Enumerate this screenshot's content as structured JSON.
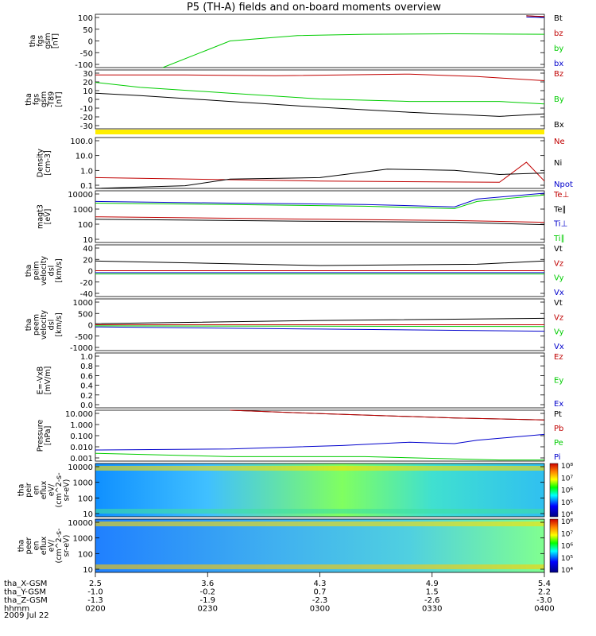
{
  "title": "P5 (TH-A) fields and on-board moments overview",
  "colors": {
    "black": "#000000",
    "red": "#c00000",
    "green": "#00cc00",
    "blue": "#0000cc",
    "yellow": "#ffee00"
  },
  "chart_data": [
    {
      "type": "line",
      "ylabel": [
        "tha",
        "fgs",
        "gsm",
        "[nT]"
      ],
      "ylim": [
        -100,
        100
      ],
      "yticks": [
        "100",
        "50",
        "0",
        "-50",
        "-100"
      ],
      "legend": [
        "Bt",
        "bz",
        "by",
        "bx"
      ],
      "series": [
        {
          "name": "Bt",
          "values": [
            [
              0.96,
              95
            ],
            [
              1,
              90
            ]
          ]
        },
        {
          "name": "bz",
          "values": [
            [
              0.96,
              94
            ],
            [
              1,
              92
            ]
          ]
        },
        {
          "name": "by",
          "values": [
            [
              0.15,
              -100
            ],
            [
              0.3,
              0
            ],
            [
              0.45,
              20
            ],
            [
              0.6,
              25
            ],
            [
              0.8,
              27
            ],
            [
              1,
              25
            ]
          ]
        },
        {
          "name": "bx",
          "values": [
            [
              0.96,
              90
            ],
            [
              1,
              88
            ]
          ]
        }
      ]
    },
    {
      "type": "line",
      "ylabel": [
        "tha",
        "fgs",
        "gsm",
        "-T89",
        "[nT]"
      ],
      "ylim": [
        -38,
        33
      ],
      "yticks": [
        "30",
        "20",
        "10",
        "0",
        "-10",
        "-20",
        "-30"
      ],
      "legend": [
        "Bz",
        "By",
        "Bx"
      ],
      "series": [
        {
          "name": "Bz",
          "values": [
            [
              0,
              27
            ],
            [
              0.2,
              27
            ],
            [
              0.4,
              26
            ],
            [
              0.7,
              28
            ],
            [
              0.85,
              25
            ],
            [
              1,
              20
            ]
          ]
        },
        {
          "name": "By",
          "values": [
            [
              0,
              18
            ],
            [
              0.1,
              12
            ],
            [
              0.3,
              5
            ],
            [
              0.5,
              -2
            ],
            [
              0.7,
              -5
            ],
            [
              0.9,
              -5
            ],
            [
              1,
              -8
            ]
          ]
        },
        {
          "name": "Bx",
          "values": [
            [
              0,
              5
            ],
            [
              0.1,
              2
            ],
            [
              0.3,
              -5
            ],
            [
              0.5,
              -12
            ],
            [
              0.7,
              -18
            ],
            [
              0.9,
              -23
            ],
            [
              1,
              -20
            ]
          ]
        }
      ]
    },
    {
      "type": "line",
      "ylabel": [
        "Density",
        "[cm-3]"
      ],
      "ylim": [
        0.1,
        200
      ],
      "yscale": "log",
      "yticks": [
        "100.0",
        "10.0",
        "1.0",
        "0.1"
      ],
      "legend": [
        "Ne",
        "Ni",
        "Npot"
      ],
      "series": [
        {
          "name": "Ne",
          "values": [
            [
              0,
              0.5
            ],
            [
              0.5,
              0.3
            ],
            [
              0.9,
              0.25
            ],
            [
              0.96,
              5
            ],
            [
              1,
              0.3
            ]
          ]
        },
        {
          "name": "Ni",
          "values": [
            [
              0,
              0.1
            ],
            [
              0.2,
              0.15
            ],
            [
              0.3,
              0.4
            ],
            [
              0.5,
              0.5
            ],
            [
              0.65,
              1.8
            ],
            [
              0.8,
              1.5
            ],
            [
              0.9,
              0.8
            ],
            [
              1,
              1
            ]
          ]
        }
      ]
    },
    {
      "type": "line",
      "ylabel": [
        "magt3",
        "[eV]"
      ],
      "ylim": [
        2,
        12000
      ],
      "yscale": "log",
      "yticks": [
        "10000",
        "1000",
        "100",
        "10"
      ],
      "legend": [
        "Te⊥",
        "Te∥",
        "Ti⊥",
        "Ti∥"
      ],
      "series": [
        {
          "name": "Te⊥",
          "values": [
            [
              0,
              150
            ],
            [
              0.5,
              100
            ],
            [
              0.8,
              80
            ],
            [
              1,
              60
            ]
          ]
        },
        {
          "name": "Te∥",
          "values": [
            [
              0,
              100
            ],
            [
              0.5,
              70
            ],
            [
              0.8,
              60
            ],
            [
              1,
              40
            ]
          ]
        },
        {
          "name": "Ti⊥",
          "values": [
            [
              0,
              2000
            ],
            [
              0.3,
              1500
            ],
            [
              0.6,
              1200
            ],
            [
              0.8,
              800
            ],
            [
              0.85,
              3000
            ],
            [
              1,
              8000
            ]
          ]
        },
        {
          "name": "Ti∥",
          "values": [
            [
              0,
              1500
            ],
            [
              0.3,
              1200
            ],
            [
              0.6,
              900
            ],
            [
              0.8,
              600
            ],
            [
              0.85,
              2000
            ],
            [
              1,
              6000
            ]
          ]
        }
      ]
    },
    {
      "type": "line",
      "ylabel": [
        "tha",
        "peim",
        "velocity",
        "dsl",
        "[km/s]"
      ],
      "ylim": [
        -40,
        40
      ],
      "yticks": [
        "40",
        "20",
        "0",
        "-20",
        "-40"
      ],
      "legend": [
        "Vt",
        "Vz",
        "Vy",
        "Vx"
      ],
      "series": [
        {
          "name": "Vt",
          "values": [
            [
              0,
              15
            ],
            [
              0.5,
              8
            ],
            [
              0.85,
              10
            ],
            [
              1,
              15
            ]
          ]
        },
        {
          "name": "Vz",
          "values": [
            [
              0,
              0
            ],
            [
              1,
              0
            ]
          ]
        },
        {
          "name": "Vy",
          "values": [
            [
              0,
              -5
            ],
            [
              1,
              -5
            ]
          ]
        },
        {
          "name": "Vx",
          "values": [
            [
              0,
              -3
            ],
            [
              1,
              -3
            ]
          ]
        }
      ]
    },
    {
      "type": "line",
      "ylabel": [
        "tha",
        "peem",
        "velocity",
        "dsl",
        "[km/s]"
      ],
      "ylim": [
        -1200,
        1200
      ],
      "yticks": [
        "1000",
        "500",
        "0",
        "-500",
        "-1000"
      ],
      "legend": [
        "Vt",
        "Vz",
        "Vy",
        "Vx"
      ],
      "series": [
        {
          "name": "Vt",
          "values": [
            [
              0,
              50
            ],
            [
              0.5,
              200
            ],
            [
              1,
              300
            ]
          ]
        },
        {
          "name": "Vz",
          "values": [
            [
              0,
              0
            ],
            [
              1,
              0
            ]
          ]
        },
        {
          "name": "Vy",
          "values": [
            [
              0,
              -50
            ],
            [
              1,
              -80
            ]
          ]
        },
        {
          "name": "Vx",
          "values": [
            [
              0,
              -100
            ],
            [
              0.5,
              -200
            ],
            [
              1,
              -300
            ]
          ]
        }
      ]
    },
    {
      "type": "line",
      "ylabel": [
        "E=-VxB",
        "[mV/m]"
      ],
      "ylim": [
        0,
        1
      ],
      "yticks": [
        "1.0",
        "0.8",
        "0.6",
        "0.4",
        "0.2",
        "0.0"
      ],
      "legend": [
        "Ez",
        "Ey",
        "Ex"
      ],
      "series": []
    },
    {
      "type": "line",
      "ylabel": [
        "Pressure",
        "[nPa]"
      ],
      "ylim": [
        0.0008,
        30
      ],
      "yscale": "log",
      "yticks": [
        "10.000",
        "1.000",
        "0.100",
        "0.010",
        "0.001"
      ],
      "legend": [
        "Pt",
        "Pb",
        "Pe",
        "Pi"
      ],
      "series": [
        {
          "name": "Pt",
          "values": [
            [
              0.3,
              30
            ],
            [
              0.5,
              15
            ],
            [
              0.8,
              6
            ],
            [
              1,
              4
            ]
          ]
        },
        {
          "name": "Pb",
          "values": [
            [
              0.3,
              30
            ],
            [
              0.5,
              15
            ],
            [
              0.8,
              6
            ],
            [
              1,
              4
            ]
          ]
        },
        {
          "name": "Pe",
          "values": [
            [
              0,
              0.004
            ],
            [
              0.3,
              0.002
            ],
            [
              0.6,
              0.002
            ],
            [
              0.9,
              0.001
            ],
            [
              1,
              0.001
            ]
          ]
        },
        {
          "name": "Pi",
          "values": [
            [
              0,
              0.008
            ],
            [
              0.3,
              0.01
            ],
            [
              0.55,
              0.02
            ],
            [
              0.7,
              0.04
            ],
            [
              0.8,
              0.03
            ],
            [
              0.85,
              0.06
            ],
            [
              1,
              0.2
            ]
          ]
        }
      ]
    },
    {
      "type": "heatmap",
      "ylabel": [
        "tha",
        "peir",
        "en",
        "eflux",
        "eV/",
        "(cm^2-s-",
        "sr-eV)"
      ],
      "ylim": [
        7,
        20000
      ],
      "yscale": "log",
      "yticks": [
        "10000",
        "1000",
        "100",
        "10"
      ],
      "colorbar": [
        "10⁸",
        "10⁷",
        "10⁶",
        "10⁵",
        "10⁴"
      ]
    },
    {
      "type": "heatmap",
      "ylabel": [
        "tha",
        "peer",
        "en",
        "eflux",
        "eV/",
        "(cm^2-s-",
        "sr-eV)"
      ],
      "ylim": [
        7,
        20000
      ],
      "yscale": "log",
      "yticks": [
        "10000",
        "1000",
        "100",
        "10"
      ],
      "colorbar": [
        "10⁸",
        "10⁷",
        "10⁶",
        "10⁵",
        "10⁴"
      ]
    }
  ],
  "xaxis": {
    "rows": [
      {
        "label": "tha_X-GSM",
        "values": [
          "2.5",
          "3.6",
          "4.3",
          "4.9",
          "5.4"
        ]
      },
      {
        "label": "tha_Y-GSM",
        "values": [
          "-1.0",
          "-0.2",
          "0.7",
          "1.5",
          "2.2"
        ]
      },
      {
        "label": "tha_Z-GSM",
        "values": [
          "-1.3",
          "-1.9",
          "-2.3",
          "-2.6",
          "-3.0"
        ]
      },
      {
        "label": "hhmm",
        "values": [
          "0200",
          "0230",
          "0300",
          "0330",
          "0400"
        ]
      }
    ],
    "date": "2009 Jul 22"
  }
}
